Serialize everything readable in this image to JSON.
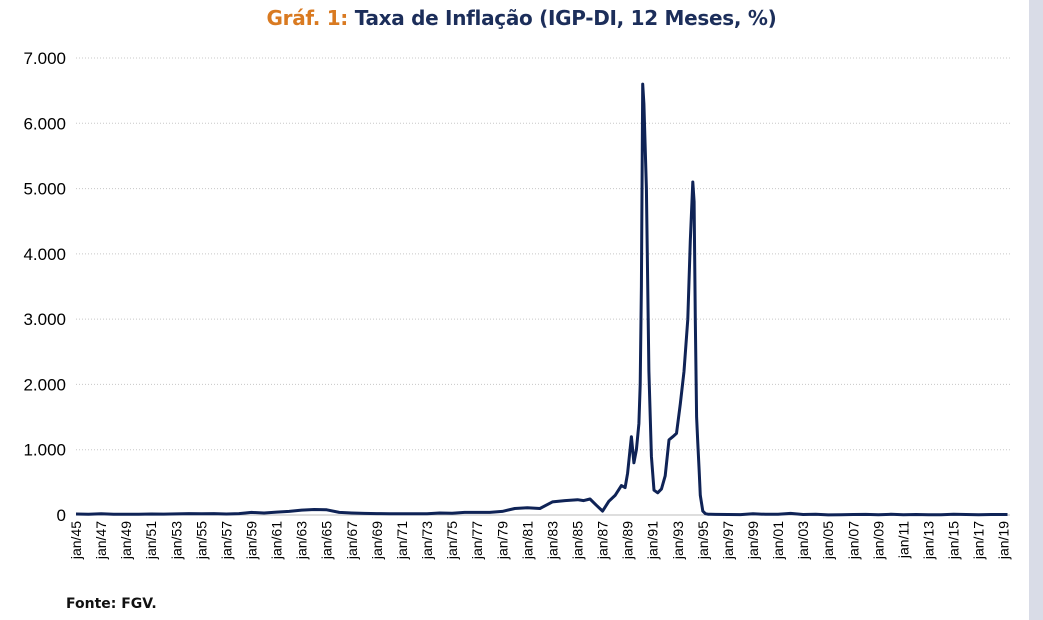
{
  "chart_data": {
    "type": "line",
    "title_prefix": "Gráf. 1:",
    "title": "Taxa de Inflação (IGP-DI, 12 Meses, %)",
    "source": "Fonte: FGV.",
    "ylim": [
      0,
      7000
    ],
    "yticks": [
      0,
      1000,
      2000,
      3000,
      4000,
      5000,
      6000,
      7000
    ],
    "ytick_labels": [
      "0",
      "1.000",
      "2.000",
      "3.000",
      "4.000",
      "5.000",
      "6.000",
      "7.000"
    ],
    "xlim": [
      1945.0,
      2019.5
    ],
    "xticks": [
      1945,
      1947,
      1949,
      1951,
      1953,
      1955,
      1957,
      1959,
      1961,
      1963,
      1965,
      1967,
      1969,
      1971,
      1973,
      1975,
      1977,
      1979,
      1981,
      1983,
      1985,
      1987,
      1989,
      1991,
      1993,
      1995,
      1997,
      1999,
      2001,
      2003,
      2005,
      2007,
      2009,
      2011,
      2013,
      2015,
      2017,
      2019
    ],
    "xtick_labels": [
      "jan/45",
      "jan/47",
      "jan/49",
      "jan/51",
      "jan/53",
      "jan/55",
      "jan/57",
      "jan/59",
      "jan/61",
      "jan/63",
      "jan/65",
      "jan/67",
      "jan/69",
      "jan/71",
      "jan/73",
      "jan/75",
      "jan/77",
      "jan/79",
      "jan/81",
      "jan/83",
      "jan/85",
      "jan/87",
      "jan/89",
      "jan/91",
      "jan/93",
      "jan/95",
      "jan/97",
      "jan/99",
      "jan/01",
      "jan/03",
      "jan/05",
      "jan/07",
      "jan/09",
      "jan/11",
      "jan/13",
      "jan/15",
      "jan/17",
      "jan/19"
    ],
    "grid": "horizontal",
    "legend": "none",
    "line_color": "#0f2356",
    "series": [
      {
        "x": [
          1945.0,
          1946.0,
          1947.0,
          1948.0,
          1949.0,
          1950.0,
          1951.0,
          1952.0,
          1953.0,
          1954.0,
          1955.0,
          1956.0,
          1957.0,
          1958.0,
          1959.0,
          1960.0,
          1961.0,
          1962.0,
          1963.0,
          1964.0,
          1965.0,
          1966.0,
          1967.0,
          1968.0,
          1969.0,
          1970.0,
          1971.0,
          1972.0,
          1973.0,
          1974.0,
          1975.0,
          1976.0,
          1977.0,
          1978.0,
          1979.0,
          1980.0,
          1981.0,
          1982.0,
          1983.0,
          1984.0,
          1985.0,
          1985.5,
          1986.0,
          1986.5,
          1987.0,
          1987.5,
          1988.0,
          1988.5,
          1988.8,
          1989.0,
          1989.3,
          1989.5,
          1989.7,
          1989.9,
          1990.0,
          1990.1,
          1990.2,
          1990.3,
          1990.5,
          1990.7,
          1990.9,
          1991.1,
          1991.4,
          1991.7,
          1992.0,
          1992.3,
          1992.6,
          1992.9,
          1993.2,
          1993.5,
          1993.8,
          1994.0,
          1994.2,
          1994.3,
          1994.4,
          1994.5,
          1994.6,
          1994.7,
          1994.8,
          1995.0,
          1995.2,
          1995.4,
          1995.6,
          1996.0,
          1997.0,
          1998.0,
          1999.0,
          2000.0,
          2001.0,
          2002.0,
          2003.0,
          2004.0,
          2005.0,
          2006.0,
          2007.0,
          2008.0,
          2009.0,
          2010.0,
          2011.0,
          2012.0,
          2013.0,
          2014.0,
          2015.0,
          2016.0,
          2017.0,
          2018.0,
          2019.3
        ],
        "values": [
          15,
          12,
          20,
          10,
          12,
          12,
          15,
          14,
          17,
          22,
          19,
          22,
          15,
          21,
          40,
          30,
          45,
          55,
          75,
          85,
          80,
          40,
          30,
          25,
          22,
          19,
          19,
          18,
          18,
          30,
          28,
          40,
          40,
          40,
          55,
          100,
          110,
          100,
          200,
          220,
          235,
          220,
          245,
          150,
          60,
          210,
          300,
          450,
          420,
          640,
          1200,
          800,
          1000,
          1400,
          2000,
          3500,
          6600,
          6300,
          5000,
          2200,
          900,
          380,
          340,
          400,
          600,
          1150,
          1200,
          1250,
          1700,
          2200,
          3000,
          4200,
          5100,
          4800,
          3000,
          1500,
          1100,
          700,
          300,
          60,
          20,
          12,
          10,
          9,
          8,
          6,
          18,
          10,
          10,
          25,
          8,
          12,
          2,
          3,
          8,
          9,
          3,
          11,
          5,
          8,
          5,
          4,
          10,
          7,
          5,
          7,
          8
        ]
      }
    ]
  }
}
